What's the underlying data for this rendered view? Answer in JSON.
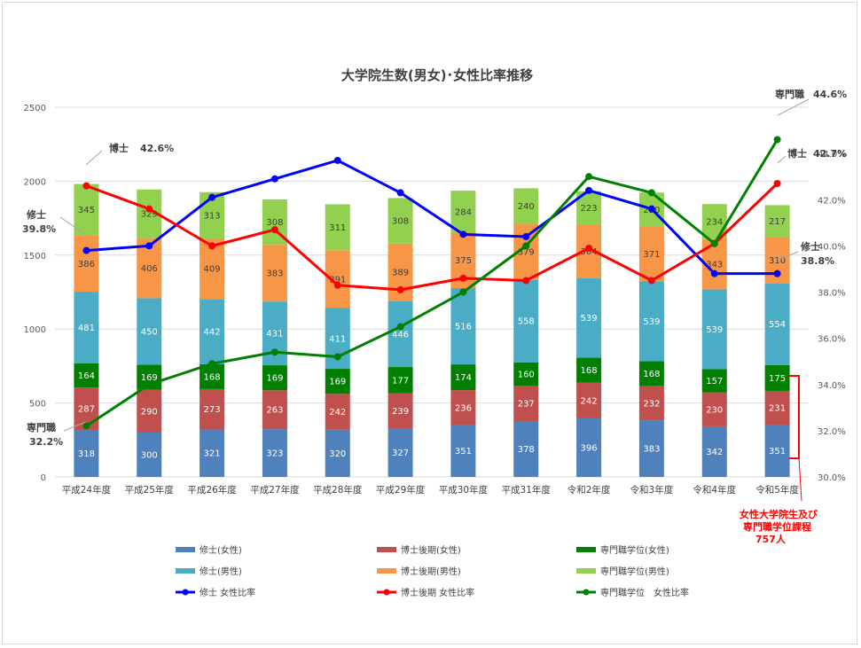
{
  "chart_data": {
    "type": "bar",
    "title": "大学院生数(男女)･女性比率推移",
    "categories": [
      "平成24年度",
      "平成25年度",
      "平成26年度",
      "平成27年度",
      "平成28年度",
      "平成29年度",
      "平成30年度",
      "平成31年度",
      "令和2年度",
      "令和3年度",
      "令和4年度",
      "令和5年度"
    ],
    "y_left": {
      "min": 0,
      "max": 2500,
      "ticks": [
        "0",
        "500",
        "1000",
        "1500",
        "2000",
        "2500"
      ]
    },
    "y_right": {
      "min": 30.0,
      "max": 46.0,
      "ticks": [
        "30.0%",
        "32.0%",
        "34.0%",
        "36.0%",
        "38.0%",
        "40.0%",
        "42.0%",
        "44.0%"
      ]
    },
    "grid": true,
    "legend_position": "bottom",
    "bar_series": [
      {
        "name": "修士(女性)",
        "color": "#4f81bd",
        "label_dark": false,
        "values": [
          318,
          300,
          321,
          323,
          320,
          327,
          351,
          378,
          396,
          383,
          342,
          351
        ]
      },
      {
        "name": "博士後期(女性)",
        "color": "#c0504d",
        "label_dark": false,
        "values": [
          287,
          290,
          273,
          263,
          242,
          239,
          236,
          237,
          242,
          232,
          230,
          231
        ]
      },
      {
        "name": "専門職学位(女性)",
        "color": "#007f00",
        "label_dark": false,
        "values": [
          164,
          169,
          168,
          169,
          169,
          177,
          174,
          160,
          168,
          168,
          157,
          175
        ]
      },
      {
        "name": "修士(男性)",
        "color": "#4bacc6",
        "label_dark": false,
        "values": [
          481,
          450,
          442,
          431,
          411,
          446,
          516,
          558,
          539,
          539,
          539,
          554
        ]
      },
      {
        "name": "博士後期(男性)",
        "color": "#f79646",
        "label_dark": true,
        "values": [
          386,
          406,
          409,
          383,
          391,
          389,
          375,
          379,
          364,
          371,
          343,
          310
        ]
      },
      {
        "name": "専門職学位(男性)",
        "color": "#92d050",
        "label_dark": true,
        "values": [
          345,
          329,
          313,
          308,
          311,
          308,
          284,
          240,
          223,
          230,
          234,
          217
        ]
      }
    ],
    "line_series": [
      {
        "name": "修士 女性比率",
        "color": "#0000ff",
        "values": [
          39.8,
          40.0,
          42.1,
          42.9,
          43.7,
          42.3,
          40.5,
          40.4,
          42.4,
          41.6,
          38.8,
          38.8
        ]
      },
      {
        "name": "博士後期 女性比率",
        "color": "#ff0000",
        "values": [
          42.6,
          41.6,
          40.0,
          40.7,
          38.3,
          38.1,
          38.6,
          38.5,
          39.9,
          38.5,
          40.1,
          42.7
        ]
      },
      {
        "name": "専門職学位　女性比率",
        "color": "#008000",
        "values": [
          32.2,
          34.0,
          34.9,
          35.4,
          35.2,
          36.5,
          38.0,
          40.0,
          43.0,
          42.3,
          40.1,
          44.6
        ]
      }
    ],
    "annotations": {
      "hakase_left_name": "博士",
      "hakase_left_value": "42.6%",
      "shushi_left_name": "修士",
      "shushi_left_value": "39.8%",
      "senmon_left_name": "専門職",
      "senmon_left_value": "32.2%",
      "senmon_right_name": "専門職",
      "senmon_right_value": "44.6%",
      "hakase_right_name": "博士",
      "hakase_right_value": "42.7%",
      "shushi_right_name": "修士",
      "shushi_right_value": "38.8%",
      "bracket_line1": "女性大学院生及び",
      "bracket_line2": "専門職学位課程",
      "bracket_line3": "757人"
    }
  }
}
